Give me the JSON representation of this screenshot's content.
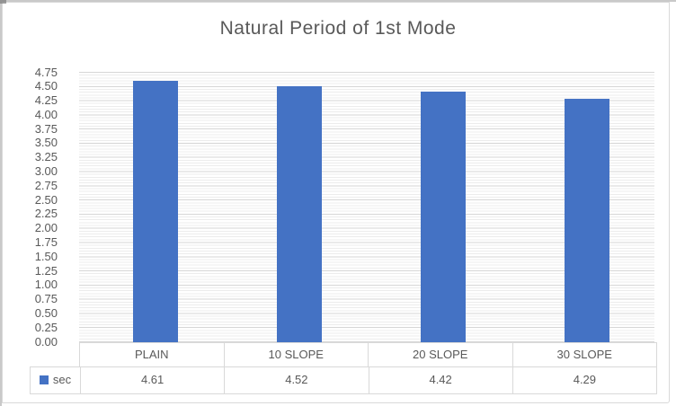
{
  "chart_data": {
    "type": "bar",
    "title": "Natural Period of 1st Mode",
    "categories": [
      "PLAIN",
      "10 SLOPE",
      "20 SLOPE",
      "30 SLOPE"
    ],
    "series": [
      {
        "name": "sec",
        "values": [
          4.61,
          4.52,
          4.42,
          4.29
        ],
        "color": "#4472C4"
      }
    ],
    "values_display": [
      "4.61",
      "4.52",
      "4.42",
      "4.29"
    ],
    "xlabel": "",
    "ylabel": "",
    "ylim": [
      0,
      4.75
    ],
    "y_major_unit": 0.25,
    "y_minor_unit": 0.05,
    "y_tick_labels": [
      "4.75",
      "4.50",
      "4.25",
      "4.00",
      "3.75",
      "3.50",
      "3.25",
      "3.00",
      "2.75",
      "2.50",
      "2.25",
      "2.00",
      "1.75",
      "1.50",
      "1.25",
      "1.00",
      "0.75",
      "0.50",
      "0.25",
      "0.00"
    ],
    "grid": true,
    "gridlines": {
      "major_color": "#d6d6d6",
      "minor_color": "#ececec"
    },
    "legend_position": "data-table-left",
    "legend_entries": [
      {
        "label": "sec",
        "color": "#4472C4"
      }
    ],
    "data_table_shown": true,
    "colors": {
      "bar": "#4472C4",
      "text": "#595959",
      "table_border": "#d9d9d9",
      "chart_border": "#d9d9d9"
    }
  }
}
